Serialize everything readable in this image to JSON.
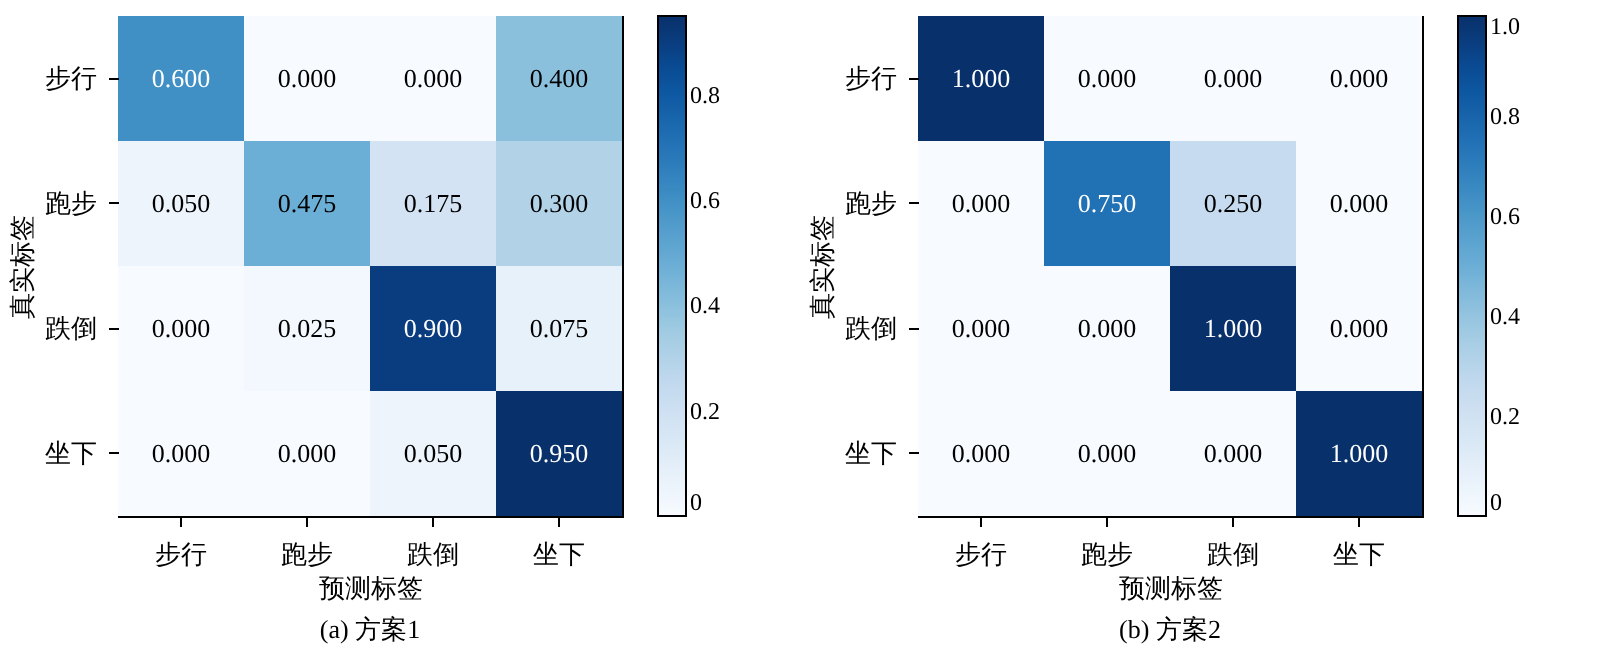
{
  "chart_data": [
    {
      "type": "heatmap",
      "title": "(a) 方案1",
      "xlabel": "预测标签",
      "ylabel": "真实标签",
      "categories": [
        "步行",
        "跑步",
        "跌倒",
        "坐下"
      ],
      "y_categories": [
        "步行",
        "跑步",
        "跌倒",
        "坐下"
      ],
      "cells": [
        [
          0.6,
          0,
          0,
          0.4
        ],
        [
          0.05,
          0.475,
          0.175,
          0.3
        ],
        [
          0,
          0.025,
          0.9,
          0.075
        ],
        [
          0,
          0,
          0.05,
          0.95
        ]
      ],
      "cell_labels": [
        [
          "0.600",
          "0.000",
          "0.000",
          "0.400"
        ],
        [
          "0.050",
          "0.475",
          "0.175",
          "0.300"
        ],
        [
          "0.000",
          "0.025",
          "0.900",
          "0.075"
        ],
        [
          "0.000",
          "0.000",
          "0.050",
          "0.950"
        ]
      ],
      "clim": [
        0,
        0.95
      ],
      "cticks": [
        0,
        0.2,
        0.4,
        0.6,
        0.8
      ],
      "grid": false
    },
    {
      "type": "heatmap",
      "title": "(b) 方案2",
      "xlabel": "预测标签",
      "ylabel": "真实标签",
      "categories": [
        "步行",
        "跑步",
        "跌倒",
        "坐下"
      ],
      "y_categories": [
        "步行",
        "跑步",
        "跌倒",
        "坐下"
      ],
      "cells": [
        [
          1,
          0,
          0,
          0
        ],
        [
          0,
          0.75,
          0.25,
          0
        ],
        [
          0,
          0,
          1,
          0
        ],
        [
          0,
          0,
          0,
          1
        ]
      ],
      "cell_labels": [
        [
          "1.000",
          "0.000",
          "0.000",
          "0.000"
        ],
        [
          "0.000",
          "0.750",
          "0.250",
          "0.000"
        ],
        [
          "0.000",
          "0.000",
          "1.000",
          "0.000"
        ],
        [
          "0.000",
          "0.000",
          "0.000",
          "1.000"
        ]
      ],
      "clim": [
        0,
        1
      ],
      "cticks": [
        0,
        0.2,
        0.4,
        0.6,
        0.8,
        {
          "value": 1,
          "label": "1.0"
        }
      ],
      "grid": false
    }
  ]
}
